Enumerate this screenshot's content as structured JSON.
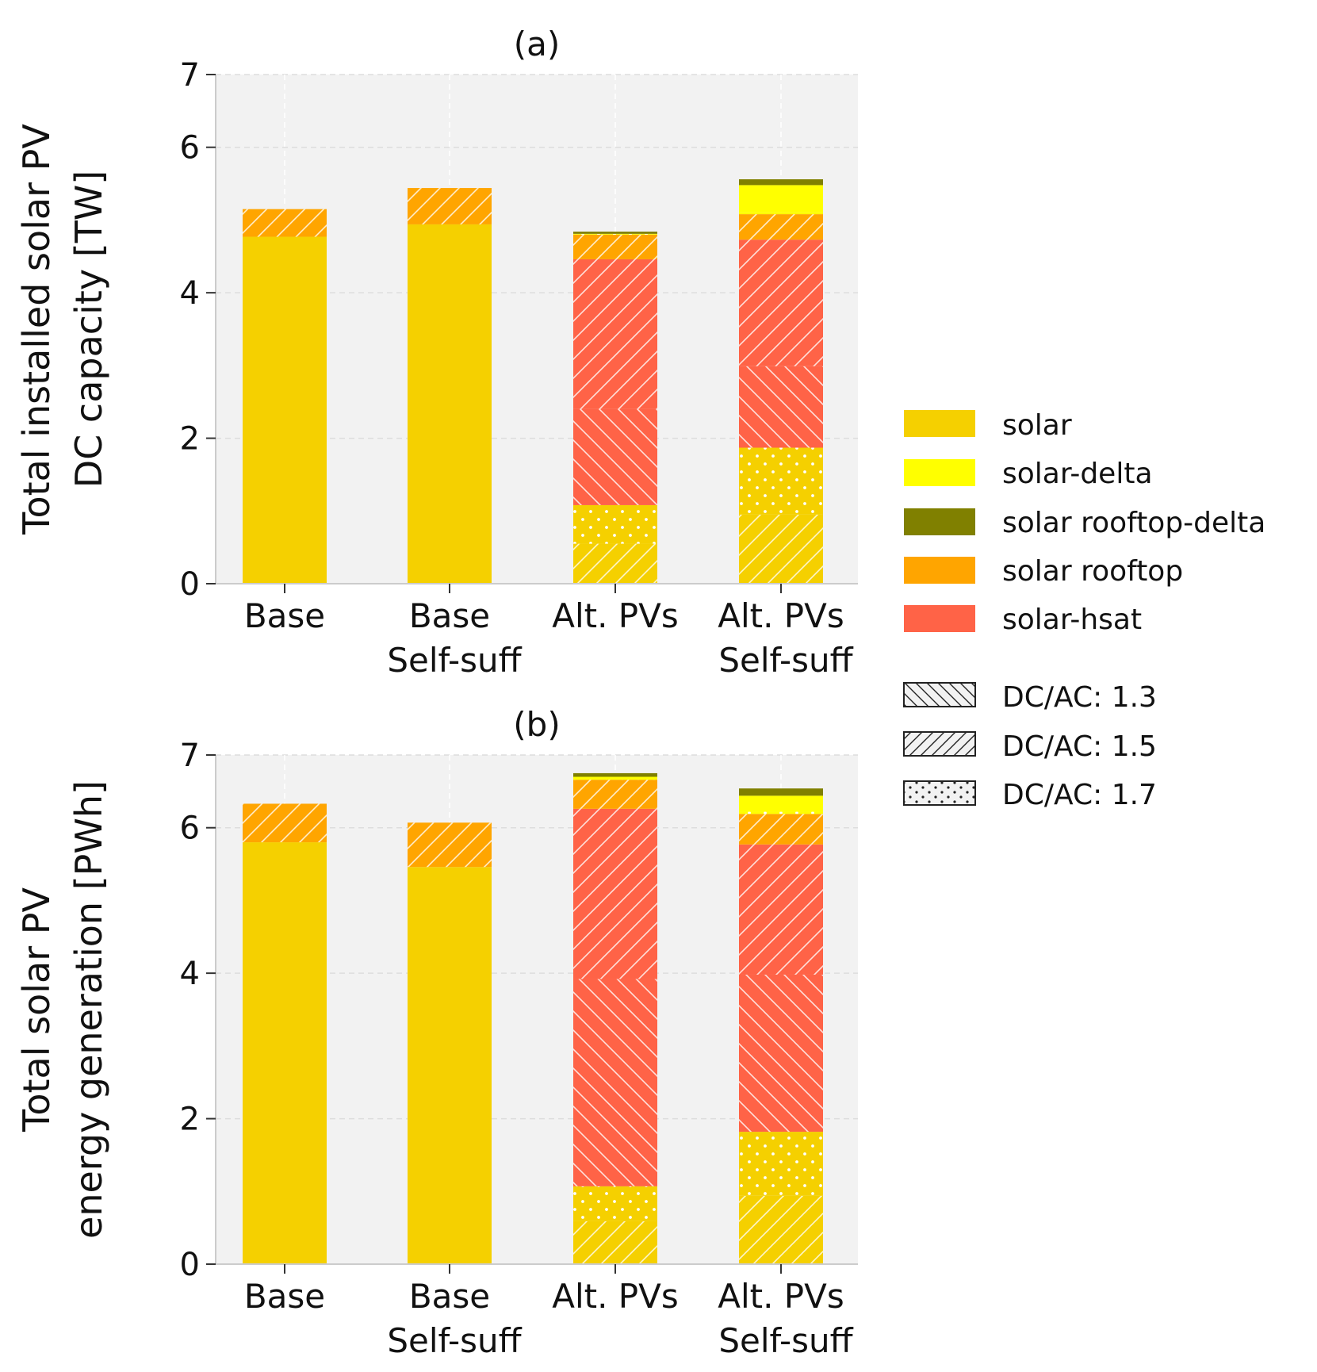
{
  "figure": {
    "legend_placement": "right, between panels"
  },
  "colors": {
    "solar": "#F5D000",
    "solar-delta": "#FFFF00",
    "solar rooftop-delta": "#808000",
    "solar rooftop": "#FFA500",
    "solar-hsat": "#FF6347",
    "plot_background": "#F2F2F2",
    "grid": "#DDDDDD",
    "hatch_line": "#FFFFFF"
  },
  "legend": {
    "technologies": [
      "solar",
      "solar-delta",
      "solar rooftop-delta",
      "solar rooftop",
      "solar-hsat"
    ],
    "hatches": [
      {
        "label": "DC/AC: 1.3",
        "pattern": "backslash"
      },
      {
        "label": "DC/AC: 1.5",
        "pattern": "slash"
      },
      {
        "label": "DC/AC: 1.7",
        "pattern": "dots"
      }
    ]
  },
  "chart_data": [
    {
      "type": "bar",
      "stacked": true,
      "title": "(a)",
      "ylabel": [
        "Total installed solar PV",
        "DC capacity [TW]"
      ],
      "ylim": [
        0,
        7
      ],
      "yticks": [
        0,
        2,
        4,
        6,
        7
      ],
      "grid": true,
      "categories": [
        [
          "Base"
        ],
        [
          "Base",
          "Self-suff"
        ],
        [
          "Alt. PVs"
        ],
        [
          "Alt. PVs",
          "Self-suff"
        ]
      ],
      "series": [
        {
          "name": "solar",
          "dcac": "1.5",
          "values": [
            0,
            0,
            0.55,
            0.95
          ]
        },
        {
          "name": "solar",
          "dcac": "1.7",
          "values": [
            0,
            0,
            0.53,
            0.92
          ]
        },
        {
          "name": "solar",
          "dcac": "",
          "values": [
            4.77,
            4.94,
            0,
            0
          ]
        },
        {
          "name": "solar-hsat",
          "dcac": "1.3",
          "values": [
            0,
            0,
            1.32,
            1.12
          ]
        },
        {
          "name": "solar-hsat",
          "dcac": "1.5",
          "values": [
            0,
            0,
            2.06,
            1.74
          ]
        },
        {
          "name": "solar rooftop",
          "dcac": "1.5",
          "values": [
            0.38,
            0.5,
            0.34,
            0.35
          ]
        },
        {
          "name": "solar-delta",
          "dcac": "1.7",
          "values": [
            0,
            0,
            0.01,
            0.03
          ]
        },
        {
          "name": "solar-delta",
          "dcac": "",
          "values": [
            0,
            0,
            0,
            0.37
          ]
        },
        {
          "name": "solar rooftop-delta",
          "dcac": "",
          "values": [
            0,
            0,
            0.03,
            0.08
          ]
        }
      ]
    },
    {
      "type": "bar",
      "stacked": true,
      "title": "(b)",
      "ylabel": [
        "Total solar PV",
        "energy generation [PWh]"
      ],
      "ylim": [
        0,
        7
      ],
      "yticks": [
        0,
        2,
        4,
        6,
        7
      ],
      "grid": true,
      "categories": [
        [
          "Base"
        ],
        [
          "Base",
          "Self-suff"
        ],
        [
          "Alt. PVs"
        ],
        [
          "Alt. PVs",
          "Self-suff"
        ]
      ],
      "series": [
        {
          "name": "solar",
          "dcac": "1.5",
          "values": [
            0,
            0,
            0.59,
            0.94
          ]
        },
        {
          "name": "solar",
          "dcac": "1.7",
          "values": [
            0,
            0,
            0.48,
            0.88
          ]
        },
        {
          "name": "solar",
          "dcac": "",
          "values": [
            5.8,
            5.46,
            0,
            0
          ]
        },
        {
          "name": "solar-hsat",
          "dcac": "1.3",
          "values": [
            0,
            0,
            2.85,
            2.16
          ]
        },
        {
          "name": "solar-hsat",
          "dcac": "1.5",
          "values": [
            0,
            0,
            2.34,
            1.79
          ]
        },
        {
          "name": "solar rooftop",
          "dcac": "1.5",
          "values": [
            0.53,
            0.61,
            0.4,
            0.42
          ]
        },
        {
          "name": "solar-delta",
          "dcac": "1.7",
          "values": [
            0,
            0,
            0.04,
            0.03
          ]
        },
        {
          "name": "solar-delta",
          "dcac": "",
          "values": [
            0,
            0,
            0,
            0.22
          ]
        },
        {
          "name": "solar rooftop-delta",
          "dcac": "",
          "values": [
            0,
            0,
            0.05,
            0.1
          ]
        }
      ]
    }
  ]
}
